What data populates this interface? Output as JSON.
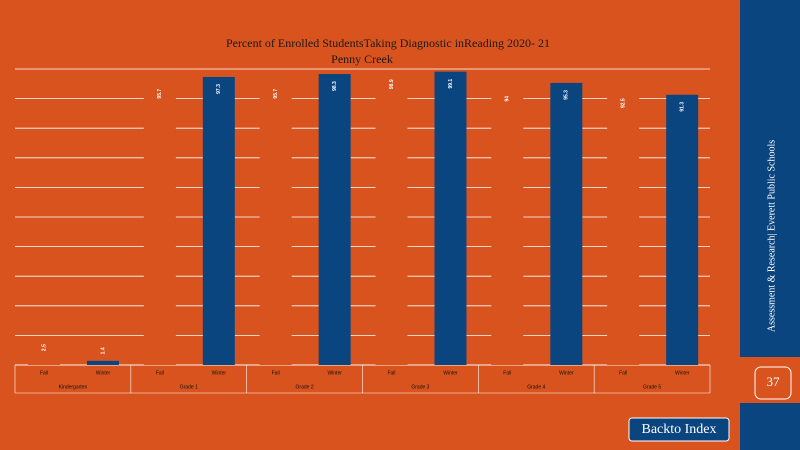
{
  "chart_data": {
    "type": "bar",
    "title": "Percent of Enrolled StudentsTaking Diagnostic inReading 2020- 21",
    "subtitle": "Penny Creek",
    "categories": [
      "Kindergarten",
      "Grade 1",
      "Grade 2",
      "Grade 3",
      "Grade 4",
      "Grade 5"
    ],
    "series": [
      {
        "name": "Fall",
        "color": "#d9531e",
        "values": [
          2.5,
          95.7,
          95.7,
          98.9,
          94.0,
          92.5
        ]
      },
      {
        "name": "Winter",
        "color": "#0b4580",
        "values": [
          1.4,
          97.3,
          98.3,
          99.1,
          95.3,
          91.3
        ]
      }
    ],
    "ylim": [
      0,
      100
    ],
    "yticks": [
      0,
      10,
      20,
      30,
      40,
      50,
      60,
      70,
      80,
      90,
      100
    ],
    "grid": true
  },
  "sidebar": {
    "text": "Assessment & Research| Everett Public Schools",
    "page_number": "37"
  },
  "button": {
    "label": "Backto Index"
  }
}
